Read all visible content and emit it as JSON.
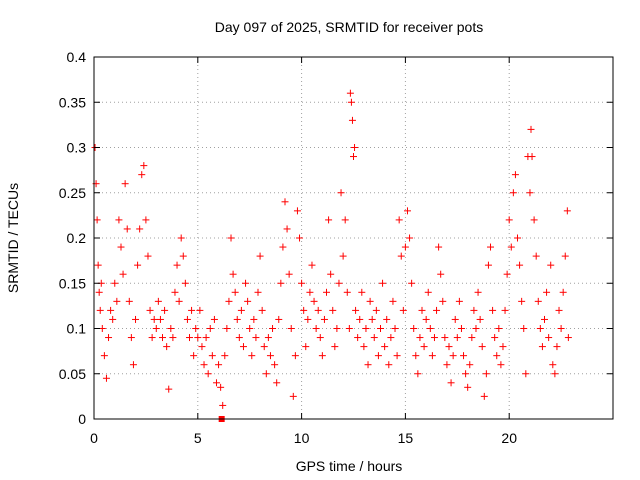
{
  "chart_data": {
    "type": "scatter",
    "title": "Day 097 of 2025, SRMTID for receiver pots",
    "xlabel": "GPS time / hours",
    "ylabel": "SRMTID / TECUs",
    "xlim": [
      0,
      25
    ],
    "ylim": [
      0,
      0.4
    ],
    "x_ticks": [
      0,
      5,
      10,
      15,
      20
    ],
    "x_tick_labels": [
      "0",
      "5",
      "10",
      "15",
      "20"
    ],
    "y_ticks": [
      0,
      0.05,
      0.1,
      0.15,
      0.2,
      0.25,
      0.3,
      0.35,
      0.4
    ],
    "y_tick_labels": [
      "0",
      "0.05",
      "0.1",
      "0.15",
      "0.2",
      "0.25",
      "0.3",
      "0.35",
      "0.4"
    ],
    "grid": true,
    "marker": "+",
    "color": "#ff0000",
    "series": [
      {
        "points": [
          [
            0.05,
            0.3
          ],
          [
            0.1,
            0.26
          ],
          [
            0.15,
            0.22
          ],
          [
            0.2,
            0.17
          ],
          [
            0.25,
            0.14
          ],
          [
            0.3,
            0.12
          ],
          [
            0.35,
            0.15
          ],
          [
            0.4,
            0.1
          ],
          [
            0.5,
            0.07
          ],
          [
            0.6,
            0.045
          ],
          [
            0.7,
            0.09
          ],
          [
            0.8,
            0.12
          ],
          [
            0.9,
            0.11
          ],
          [
            1.0,
            0.15
          ],
          [
            1.1,
            0.13
          ],
          [
            1.2,
            0.22
          ],
          [
            1.3,
            0.19
          ],
          [
            1.4,
            0.16
          ],
          [
            1.5,
            0.26
          ],
          [
            1.6,
            0.21
          ],
          [
            1.7,
            0.13
          ],
          [
            1.8,
            0.09
          ],
          [
            1.9,
            0.06
          ],
          [
            2.0,
            0.11
          ],
          [
            2.1,
            0.17
          ],
          [
            2.2,
            0.21
          ],
          [
            2.3,
            0.27
          ],
          [
            2.4,
            0.28
          ],
          [
            2.5,
            0.22
          ],
          [
            2.6,
            0.18
          ],
          [
            2.7,
            0.12
          ],
          [
            2.8,
            0.09
          ],
          [
            2.9,
            0.11
          ],
          [
            3.0,
            0.1
          ],
          [
            3.1,
            0.13
          ],
          [
            3.2,
            0.11
          ],
          [
            3.3,
            0.09
          ],
          [
            3.4,
            0.12
          ],
          [
            3.5,
            0.08
          ],
          [
            3.6,
            0.033
          ],
          [
            3.7,
            0.1
          ],
          [
            3.8,
            0.09
          ],
          [
            3.9,
            0.14
          ],
          [
            4.0,
            0.17
          ],
          [
            4.1,
            0.13
          ],
          [
            4.2,
            0.2
          ],
          [
            4.3,
            0.18
          ],
          [
            4.4,
            0.15
          ],
          [
            4.5,
            0.11
          ],
          [
            4.6,
            0.09
          ],
          [
            4.7,
            0.12
          ],
          [
            4.8,
            0.07
          ],
          [
            4.9,
            0.1
          ],
          [
            5.0,
            0.09
          ],
          [
            5.1,
            0.12
          ],
          [
            5.2,
            0.08
          ],
          [
            5.3,
            0.06
          ],
          [
            5.4,
            0.09
          ],
          [
            5.5,
            0.05
          ],
          [
            5.6,
            0.1
          ],
          [
            5.7,
            0.07
          ],
          [
            5.8,
            0.11
          ],
          [
            5.9,
            0.04
          ],
          [
            6.0,
            0.06
          ],
          [
            6.1,
            0.035
          ],
          [
            6.2,
            0.015
          ],
          [
            6.3,
            0.07
          ],
          [
            6.4,
            0.1
          ],
          [
            6.5,
            0.13
          ],
          [
            6.6,
            0.2
          ],
          [
            6.7,
            0.16
          ],
          [
            6.8,
            0.14
          ],
          [
            6.9,
            0.11
          ],
          [
            7.0,
            0.09
          ],
          [
            7.1,
            0.12
          ],
          [
            7.2,
            0.08
          ],
          [
            7.3,
            0.15
          ],
          [
            7.4,
            0.13
          ],
          [
            7.5,
            0.1
          ],
          [
            7.6,
            0.07
          ],
          [
            7.7,
            0.11
          ],
          [
            7.8,
            0.09
          ],
          [
            7.9,
            0.14
          ],
          [
            8.0,
            0.18
          ],
          [
            8.1,
            0.12
          ],
          [
            8.2,
            0.08
          ],
          [
            8.3,
            0.05
          ],
          [
            8.4,
            0.09
          ],
          [
            8.5,
            0.07
          ],
          [
            8.6,
            0.1
          ],
          [
            8.7,
            0.06
          ],
          [
            8.8,
            0.04
          ],
          [
            8.9,
            0.11
          ],
          [
            9.0,
            0.15
          ],
          [
            9.1,
            0.19
          ],
          [
            9.2,
            0.24
          ],
          [
            9.3,
            0.21
          ],
          [
            9.4,
            0.16
          ],
          [
            9.5,
            0.1
          ],
          [
            9.6,
            0.025
          ],
          [
            9.7,
            0.07
          ],
          [
            9.8,
            0.23
          ],
          [
            9.9,
            0.2
          ],
          [
            10.0,
            0.15
          ],
          [
            10.1,
            0.12
          ],
          [
            10.2,
            0.08
          ],
          [
            10.3,
            0.11
          ],
          [
            10.4,
            0.14
          ],
          [
            10.5,
            0.17
          ],
          [
            10.6,
            0.13
          ],
          [
            10.7,
            0.1
          ],
          [
            10.8,
            0.12
          ],
          [
            10.9,
            0.09
          ],
          [
            11.0,
            0.07
          ],
          [
            11.1,
            0.11
          ],
          [
            11.2,
            0.14
          ],
          [
            11.3,
            0.22
          ],
          [
            11.4,
            0.16
          ],
          [
            11.5,
            0.12
          ],
          [
            11.6,
            0.08
          ],
          [
            11.7,
            0.1
          ],
          [
            11.8,
            0.15
          ],
          [
            11.9,
            0.25
          ],
          [
            12.0,
            0.18
          ],
          [
            12.1,
            0.22
          ],
          [
            12.2,
            0.14
          ],
          [
            12.3,
            0.1
          ],
          [
            12.35,
            0.36
          ],
          [
            12.4,
            0.35
          ],
          [
            12.45,
            0.33
          ],
          [
            12.5,
            0.29
          ],
          [
            12.55,
            0.3
          ],
          [
            12.6,
            0.12
          ],
          [
            12.7,
            0.09
          ],
          [
            12.8,
            0.11
          ],
          [
            12.9,
            0.14
          ],
          [
            13.0,
            0.08
          ],
          [
            13.1,
            0.1
          ],
          [
            13.2,
            0.06
          ],
          [
            13.3,
            0.13
          ],
          [
            13.4,
            0.11
          ],
          [
            13.5,
            0.09
          ],
          [
            13.6,
            0.12
          ],
          [
            13.7,
            0.07
          ],
          [
            13.8,
            0.1
          ],
          [
            13.9,
            0.15
          ],
          [
            14.0,
            0.08
          ],
          [
            14.1,
            0.11
          ],
          [
            14.2,
            0.06
          ],
          [
            14.3,
            0.09
          ],
          [
            14.4,
            0.13
          ],
          [
            14.5,
            0.1
          ],
          [
            14.6,
            0.07
          ],
          [
            14.7,
            0.22
          ],
          [
            14.8,
            0.18
          ],
          [
            14.9,
            0.12
          ],
          [
            15.0,
            0.19
          ],
          [
            15.1,
            0.23
          ],
          [
            15.2,
            0.2
          ],
          [
            15.3,
            0.15
          ],
          [
            15.4,
            0.1
          ],
          [
            15.5,
            0.07
          ],
          [
            15.6,
            0.05
          ],
          [
            15.7,
            0.09
          ],
          [
            15.8,
            0.12
          ],
          [
            15.9,
            0.08
          ],
          [
            16.0,
            0.11
          ],
          [
            16.1,
            0.14
          ],
          [
            16.2,
            0.1
          ],
          [
            16.3,
            0.07
          ],
          [
            16.4,
            0.09
          ],
          [
            16.5,
            0.12
          ],
          [
            16.6,
            0.19
          ],
          [
            16.7,
            0.16
          ],
          [
            16.8,
            0.13
          ],
          [
            16.9,
            0.09
          ],
          [
            17.0,
            0.06
          ],
          [
            17.1,
            0.08
          ],
          [
            17.2,
            0.04
          ],
          [
            17.3,
            0.07
          ],
          [
            17.4,
            0.11
          ],
          [
            17.5,
            0.09
          ],
          [
            17.6,
            0.13
          ],
          [
            17.7,
            0.1
          ],
          [
            17.8,
            0.07
          ],
          [
            17.9,
            0.05
          ],
          [
            18.0,
            0.035
          ],
          [
            18.1,
            0.06
          ],
          [
            18.2,
            0.09
          ],
          [
            18.3,
            0.12
          ],
          [
            18.4,
            0.1
          ],
          [
            18.5,
            0.14
          ],
          [
            18.6,
            0.11
          ],
          [
            18.7,
            0.08
          ],
          [
            18.8,
            0.025
          ],
          [
            18.9,
            0.05
          ],
          [
            19.0,
            0.17
          ],
          [
            19.1,
            0.19
          ],
          [
            19.2,
            0.12
          ],
          [
            19.3,
            0.09
          ],
          [
            19.4,
            0.07
          ],
          [
            19.5,
            0.1
          ],
          [
            19.6,
            0.06
          ],
          [
            19.7,
            0.08
          ],
          [
            19.8,
            0.12
          ],
          [
            19.9,
            0.16
          ],
          [
            20.0,
            0.22
          ],
          [
            20.1,
            0.19
          ],
          [
            20.2,
            0.25
          ],
          [
            20.3,
            0.27
          ],
          [
            20.4,
            0.2
          ],
          [
            20.5,
            0.17
          ],
          [
            20.6,
            0.13
          ],
          [
            20.7,
            0.1
          ],
          [
            20.8,
            0.05
          ],
          [
            20.9,
            0.29
          ],
          [
            21.0,
            0.25
          ],
          [
            21.05,
            0.32
          ],
          [
            21.1,
            0.29
          ],
          [
            21.2,
            0.22
          ],
          [
            21.3,
            0.18
          ],
          [
            21.4,
            0.13
          ],
          [
            21.5,
            0.1
          ],
          [
            21.6,
            0.08
          ],
          [
            21.7,
            0.11
          ],
          [
            21.8,
            0.14
          ],
          [
            21.9,
            0.09
          ],
          [
            22.0,
            0.17
          ],
          [
            22.1,
            0.06
          ],
          [
            22.2,
            0.05
          ],
          [
            22.3,
            0.08
          ],
          [
            22.4,
            0.12
          ],
          [
            22.5,
            0.1
          ],
          [
            22.6,
            0.14
          ],
          [
            22.7,
            0.18
          ],
          [
            22.8,
            0.23
          ],
          [
            22.85,
            0.09
          ]
        ]
      }
    ],
    "extra_marker": {
      "x": 6.15,
      "y": 0.0,
      "shape": "square"
    }
  }
}
